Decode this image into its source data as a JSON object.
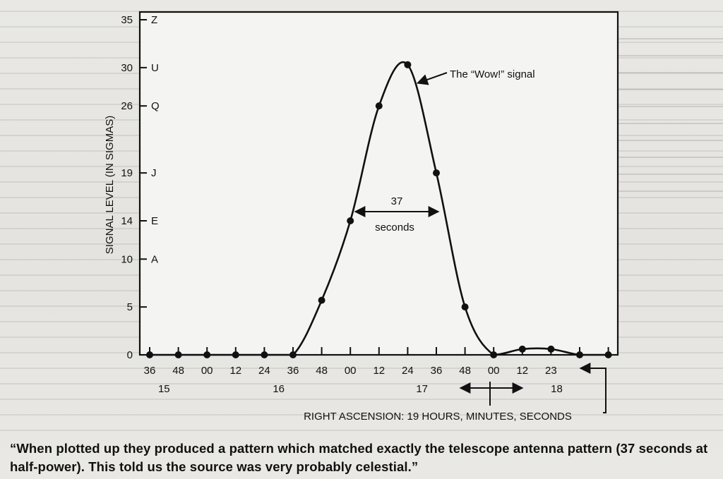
{
  "caption": "“When plotted up they produced a pattern which matched exactly the telescope antenna pattern (37 seconds at half-power). This told us the source was very probably celestial.”",
  "chart_data": {
    "type": "line",
    "xlabel": "RIGHT ASCENSION: 19 HOURS, MINUTES, SECONDS",
    "ylabel": "SIGNAL LEVEL (IN SIGMAS)",
    "ylim": [
      0,
      35
    ],
    "grid": false,
    "y_ticks": [
      {
        "value": 0,
        "label": "0",
        "code": ""
      },
      {
        "value": 5,
        "label": "5",
        "code": ""
      },
      {
        "value": 10,
        "label": "10",
        "code": "A"
      },
      {
        "value": 14,
        "label": "14",
        "code": "E"
      },
      {
        "value": 19,
        "label": "19",
        "code": "J"
      },
      {
        "value": 26,
        "label": "26",
        "code": "Q"
      },
      {
        "value": 30,
        "label": "30",
        "code": "U"
      },
      {
        "value": 35,
        "label": "35",
        "code": "Z"
      }
    ],
    "x_tick_labels": [
      "36",
      "48",
      "00",
      "12",
      "24",
      "36",
      "48",
      "00",
      "12",
      "24",
      "36",
      "48",
      "00",
      "12",
      "23"
    ],
    "minute_labels": [
      "15",
      "16",
      "17",
      "18"
    ],
    "points": [
      {
        "x": 0,
        "y": 0
      },
      {
        "x": 1,
        "y": 0
      },
      {
        "x": 2,
        "y": 0
      },
      {
        "x": 3,
        "y": 0
      },
      {
        "x": 4,
        "y": 0
      },
      {
        "x": 5,
        "y": 0
      },
      {
        "x": 6,
        "y": 5.7
      },
      {
        "x": 7,
        "y": 14
      },
      {
        "x": 8,
        "y": 26
      },
      {
        "x": 9,
        "y": 30.3
      },
      {
        "x": 10,
        "y": 19
      },
      {
        "x": 11,
        "y": 5
      },
      {
        "x": 12,
        "y": 0
      },
      {
        "x": 13,
        "y": 0.6
      },
      {
        "x": 14,
        "y": 0.6
      },
      {
        "x": 15,
        "y": 0
      },
      {
        "x": 16,
        "y": 0
      }
    ],
    "annotations": {
      "wow_label": "The “Wow!” signal",
      "width_value": "37",
      "width_unit": "seconds"
    }
  }
}
